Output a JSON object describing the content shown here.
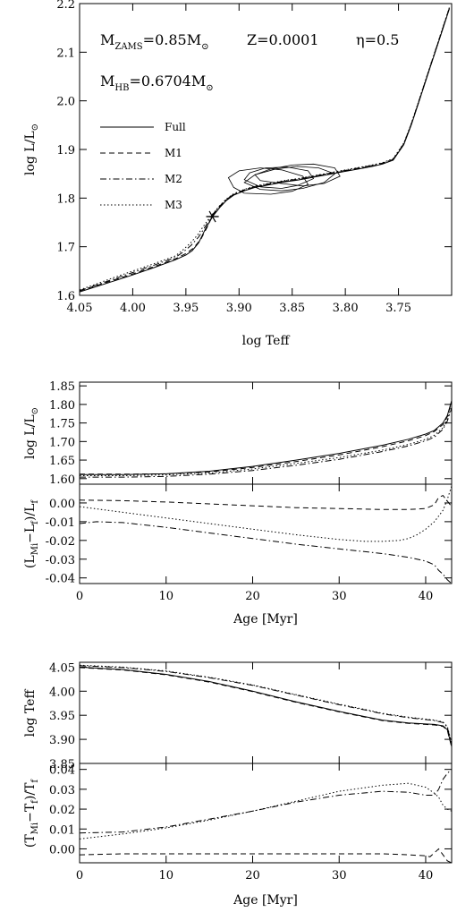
{
  "annotations": {
    "mzams_prefix": "M",
    "mzams_sub": "ZAMS",
    "mzams_value": "=0.85M",
    "metallicity": "Z=0.0001",
    "eta": "η=0.5",
    "mhb_prefix": "M",
    "mhb_sub": "HB",
    "mhb_value": "=0.6704M",
    "solar_symbol": "⊙"
  },
  "legend": [
    "Full",
    "M1",
    "M2",
    "M3"
  ],
  "colors": {
    "line": "#000000",
    "background": "#ffffff"
  },
  "chart_data": [
    {
      "type": "line",
      "xlabel": "log Teff",
      "ylabel_prefix": "log L/L",
      "xlim": [
        4.05,
        3.7
      ],
      "ylim": [
        1.6,
        2.2
      ],
      "xticks": [
        "4.05",
        "4.00",
        "3.95",
        "3.90",
        "3.85",
        "3.80",
        "3.75"
      ],
      "yticks": [
        "1.6",
        "1.7",
        "1.8",
        "1.9",
        "2.0",
        "2.1",
        "2.2"
      ],
      "marker": {
        "x": 3.925,
        "y": 1.762,
        "symbol": "asterisk"
      },
      "series": [
        {
          "name": "Full",
          "dash": "solid",
          "x": [
            4.05,
            4.04,
            4.02,
            4.0,
            3.98,
            3.96,
            3.95,
            3.944,
            3.938,
            3.932,
            3.925,
            3.918,
            3.912,
            3.905,
            3.895,
            3.885,
            3.875,
            3.865,
            3.855,
            3.845,
            3.835,
            3.825,
            3.815,
            3.805,
            3.795,
            3.785,
            3.775,
            3.765,
            3.755,
            3.745,
            3.738,
            3.732,
            3.726,
            3.72,
            3.714,
            3.708,
            3.702
          ],
          "y": [
            1.607,
            1.614,
            1.628,
            1.642,
            1.657,
            1.673,
            1.683,
            1.692,
            1.708,
            1.735,
            1.762,
            1.781,
            1.795,
            1.806,
            1.815,
            1.822,
            1.826,
            1.83,
            1.834,
            1.837,
            1.841,
            1.845,
            1.849,
            1.853,
            1.857,
            1.861,
            1.865,
            1.87,
            1.878,
            1.91,
            1.95,
            1.99,
            2.03,
            2.07,
            2.11,
            2.15,
            2.19
          ]
        },
        {
          "name": "M1",
          "dash": "dash",
          "x": [
            4.05,
            4.04,
            4.02,
            4.0,
            3.98,
            3.96,
            3.95,
            3.943,
            3.936,
            3.93,
            3.925,
            3.918,
            3.912,
            3.905,
            3.895,
            3.885,
            3.875,
            3.865,
            3.855,
            3.845,
            3.835,
            3.825,
            3.815,
            3.805,
            3.795,
            3.785,
            3.775,
            3.765,
            3.755,
            3.745,
            3.738,
            3.732,
            3.726,
            3.72,
            3.714,
            3.708,
            3.702
          ],
          "y": [
            1.609,
            1.616,
            1.63,
            1.644,
            1.659,
            1.675,
            1.686,
            1.697,
            1.715,
            1.74,
            1.764,
            1.782,
            1.796,
            1.807,
            1.816,
            1.823,
            1.827,
            1.831,
            1.835,
            1.838,
            1.842,
            1.846,
            1.85,
            1.854,
            1.858,
            1.862,
            1.866,
            1.871,
            1.879,
            1.911,
            1.951,
            1.991,
            2.031,
            2.071,
            2.111,
            2.151,
            2.191
          ]
        },
        {
          "name": "M2",
          "dash": "dashdot",
          "x": [
            4.05,
            4.04,
            4.02,
            4.0,
            3.98,
            3.96,
            3.952,
            3.945,
            3.938,
            3.931,
            3.925,
            3.918,
            3.912,
            3.905,
            3.895,
            3.885,
            3.875,
            3.865,
            3.855,
            3.845,
            3.835,
            3.825,
            3.815,
            3.805,
            3.795,
            3.785,
            3.775,
            3.765,
            3.755,
            3.745,
            3.738,
            3.732,
            3.726,
            3.72,
            3.714,
            3.708,
            3.702
          ],
          "y": [
            1.61,
            1.617,
            1.632,
            1.647,
            1.662,
            1.678,
            1.69,
            1.703,
            1.72,
            1.744,
            1.766,
            1.784,
            1.797,
            1.808,
            1.817,
            1.824,
            1.828,
            1.832,
            1.836,
            1.839,
            1.843,
            1.847,
            1.851,
            1.855,
            1.859,
            1.863,
            1.867,
            1.872,
            1.88,
            1.912,
            1.952,
            1.992,
            2.032,
            2.072,
            2.112,
            2.152,
            2.192
          ]
        },
        {
          "name": "M3",
          "dash": "dot",
          "x": [
            4.05,
            4.04,
            4.02,
            4.0,
            3.98,
            3.96,
            3.953,
            3.946,
            3.939,
            3.932,
            3.925,
            3.918,
            3.912,
            3.905,
            3.895,
            3.885,
            3.875,
            3.865,
            3.855,
            3.845,
            3.835,
            3.825,
            3.815,
            3.805,
            3.795,
            3.785,
            3.775,
            3.765,
            3.755,
            3.745,
            3.738,
            3.732,
            3.726,
            3.72,
            3.714,
            3.708,
            3.702
          ],
          "y": [
            1.611,
            1.619,
            1.635,
            1.65,
            1.665,
            1.681,
            1.693,
            1.707,
            1.724,
            1.747,
            1.767,
            1.785,
            1.798,
            1.809,
            1.818,
            1.825,
            1.829,
            1.833,
            1.837,
            1.84,
            1.844,
            1.848,
            1.852,
            1.856,
            1.86,
            1.864,
            1.868,
            1.873,
            1.881,
            1.913,
            1.953,
            1.993,
            2.033,
            2.073,
            2.113,
            2.153,
            2.193
          ]
        }
      ],
      "loops": [
        {
          "x": [
            3.86,
            3.84,
            3.82,
            3.805,
            3.81,
            3.83,
            3.85,
            3.87,
            3.885,
            3.88,
            3.86
          ],
          "y": [
            1.83,
            1.825,
            1.83,
            1.845,
            1.862,
            1.87,
            1.868,
            1.86,
            1.848,
            1.836,
            1.83
          ]
        },
        {
          "x": [
            3.88,
            3.86,
            3.84,
            3.82,
            3.81,
            3.825,
            3.845,
            3.865,
            3.885,
            3.895,
            3.88
          ],
          "y": [
            1.818,
            1.815,
            1.82,
            1.832,
            1.85,
            1.862,
            1.865,
            1.86,
            1.848,
            1.832,
            1.818
          ]
        },
        {
          "x": [
            3.895,
            3.87,
            3.85,
            3.835,
            3.84,
            3.86,
            3.88,
            3.9,
            3.91,
            3.905,
            3.895
          ],
          "y": [
            1.81,
            1.808,
            1.814,
            1.828,
            1.845,
            1.858,
            1.862,
            1.856,
            1.842,
            1.822,
            1.81
          ]
        },
        {
          "x": [
            3.88,
            3.86,
            3.845,
            3.83,
            3.835,
            3.855,
            3.875,
            3.89,
            3.895,
            3.88
          ],
          "y": [
            1.823,
            1.82,
            1.826,
            1.84,
            1.856,
            1.864,
            1.862,
            1.852,
            1.838,
            1.823
          ]
        }
      ]
    },
    {
      "type": "line",
      "xlim": [
        0,
        43
      ],
      "ylim": [
        1.585,
        1.86
      ],
      "ylabel_prefix": "log L/L",
      "yticks": [
        "1.60",
        "1.65",
        "1.70",
        "1.75",
        "1.80",
        "1.85"
      ],
      "series": [
        {
          "name": "Full",
          "dash": "solid",
          "x": [
            0,
            5,
            10,
            15,
            20,
            25,
            30,
            35,
            38,
            40,
            41,
            42,
            42.5,
            43
          ],
          "y": [
            1.611,
            1.611,
            1.613,
            1.62,
            1.633,
            1.65,
            1.668,
            1.69,
            1.706,
            1.72,
            1.73,
            1.75,
            1.77,
            1.81
          ]
        },
        {
          "name": "M1",
          "dash": "dash",
          "x": [
            0,
            5,
            10,
            15,
            20,
            25,
            30,
            35,
            38,
            40,
            41,
            42,
            42.5,
            43
          ],
          "y": [
            1.612,
            1.612,
            1.613,
            1.618,
            1.63,
            1.646,
            1.664,
            1.686,
            1.702,
            1.716,
            1.727,
            1.746,
            1.767,
            1.808
          ]
        },
        {
          "name": "M2",
          "dash": "dashdot",
          "x": [
            0,
            5,
            10,
            15,
            20,
            25,
            30,
            35,
            38,
            40,
            41,
            42,
            42.5,
            43
          ],
          "y": [
            1.604,
            1.604,
            1.606,
            1.612,
            1.622,
            1.636,
            1.652,
            1.673,
            1.688,
            1.702,
            1.712,
            1.733,
            1.755,
            1.79
          ]
        },
        {
          "name": "M3",
          "dash": "dot",
          "x": [
            0,
            5,
            10,
            15,
            20,
            25,
            30,
            35,
            38,
            40,
            41,
            42,
            42.5,
            43
          ],
          "y": [
            1.608,
            1.608,
            1.61,
            1.615,
            1.626,
            1.641,
            1.657,
            1.677,
            1.692,
            1.706,
            1.717,
            1.737,
            1.76,
            1.795
          ]
        }
      ]
    },
    {
      "type": "line",
      "xlim": [
        0,
        43
      ],
      "ylim": [
        -0.043,
        0.01
      ],
      "xlabel": "Age [Myr]",
      "ylabel": "(L",
      "ylabel_sub1": "Mi",
      "ylabel_mid": "−L",
      "ylabel_sub2": "f",
      "ylabel_end": ")/L",
      "ylabel_sub3": "f",
      "xticks": [
        "0",
        "10",
        "20",
        "30",
        "40"
      ],
      "yticks": [
        "0.00",
        "-0.01",
        "-0.02",
        "-0.03",
        "-0.04"
      ],
      "series": [
        {
          "name": "M1",
          "dash": "dash",
          "x": [
            0,
            5,
            10,
            15,
            20,
            25,
            30,
            35,
            38,
            40,
            40.5,
            41,
            41.5,
            42,
            42.5,
            43
          ],
          "y": [
            0.0015,
            0.0012,
            0.0005,
            -0.0005,
            -0.0015,
            -0.0025,
            -0.003,
            -0.0035,
            -0.0035,
            -0.003,
            -0.002,
            -0.001,
            0.003,
            0.004,
            0.001,
            -0.002
          ]
        },
        {
          "name": "M2",
          "dash": "dashdot",
          "x": [
            0,
            2,
            5,
            10,
            15,
            20,
            25,
            30,
            35,
            38,
            40,
            41,
            41.5,
            42,
            42.5,
            43
          ],
          "y": [
            -0.011,
            -0.01,
            -0.0105,
            -0.013,
            -0.016,
            -0.019,
            -0.022,
            -0.0245,
            -0.027,
            -0.029,
            -0.031,
            -0.033,
            -0.036,
            -0.038,
            -0.041,
            -0.043
          ]
        },
        {
          "name": "M3",
          "dash": "dot",
          "x": [
            0,
            5,
            10,
            15,
            20,
            25,
            30,
            33,
            35,
            37,
            38,
            39,
            40,
            41,
            42,
            42.5,
            43
          ],
          "y": [
            -0.002,
            -0.005,
            -0.008,
            -0.011,
            -0.014,
            -0.017,
            -0.0195,
            -0.0205,
            -0.0205,
            -0.02,
            -0.019,
            -0.017,
            -0.014,
            -0.01,
            -0.004,
            0.002,
            0.009
          ]
        }
      ]
    },
    {
      "type": "line",
      "xlim": [
        0,
        43
      ],
      "ylim": [
        3.85,
        4.06
      ],
      "ylabel": "log Teff",
      "yticks": [
        "3.85",
        "3.90",
        "3.95",
        "4.00",
        "4.05"
      ],
      "series": [
        {
          "name": "Full",
          "dash": "solid",
          "x": [
            0,
            5,
            10,
            15,
            20,
            25,
            30,
            33,
            35,
            38,
            40,
            41,
            42,
            42.5,
            43
          ],
          "y": [
            4.05,
            4.045,
            4.035,
            4.02,
            4.0,
            3.978,
            3.958,
            3.947,
            3.94,
            3.934,
            3.932,
            3.931,
            3.928,
            3.92,
            3.885
          ]
        },
        {
          "name": "M1",
          "dash": "dash",
          "x": [
            0,
            5,
            10,
            15,
            20,
            25,
            30,
            33,
            35,
            38,
            40,
            41,
            42,
            42.5,
            43
          ],
          "y": [
            4.049,
            4.044,
            4.034,
            4.019,
            3.999,
            3.977,
            3.957,
            3.946,
            3.939,
            3.933,
            3.931,
            3.93,
            3.927,
            3.919,
            3.884
          ]
        },
        {
          "name": "M2",
          "dash": "dashdot",
          "x": [
            0,
            5,
            10,
            15,
            20,
            25,
            30,
            33,
            35,
            38,
            40,
            41,
            42,
            42.5,
            43
          ],
          "y": [
            4.053,
            4.049,
            4.041,
            4.028,
            4.012,
            3.992,
            3.972,
            3.961,
            3.953,
            3.945,
            3.941,
            3.939,
            3.935,
            3.925,
            3.89
          ]
        },
        {
          "name": "M3",
          "dash": "dot",
          "x": [
            0,
            5,
            10,
            15,
            20,
            25,
            30,
            33,
            35,
            38,
            40,
            41,
            42,
            42.5,
            43
          ],
          "y": [
            4.054,
            4.05,
            4.042,
            4.029,
            4.013,
            3.993,
            3.973,
            3.962,
            3.954,
            3.946,
            3.942,
            3.94,
            3.936,
            3.927,
            3.892
          ]
        }
      ]
    },
    {
      "type": "line",
      "xlim": [
        0,
        43
      ],
      "ylim": [
        -0.007,
        0.043
      ],
      "xlabel": "Age [Myr]",
      "ylabel": "(T",
      "ylabel_sub1": "Mi",
      "ylabel_mid": "−T",
      "ylabel_sub2": "f",
      "ylabel_end": ")/T",
      "ylabel_sub3": "f",
      "xticks": [
        "0",
        "10",
        "20",
        "30",
        "40"
      ],
      "yticks": [
        "0.00",
        "0.01",
        "0.02",
        "0.03",
        "0.04"
      ],
      "series": [
        {
          "name": "M1",
          "dash": "dash",
          "x": [
            0,
            5,
            10,
            15,
            20,
            25,
            30,
            35,
            38,
            40,
            40.5,
            41,
            41.5,
            42,
            42.5,
            43
          ],
          "y": [
            -0.003,
            -0.0025,
            -0.0025,
            -0.0025,
            -0.0025,
            -0.0025,
            -0.0025,
            -0.0025,
            -0.003,
            -0.0035,
            -0.004,
            -0.002,
            0.0,
            -0.003,
            -0.006,
            -0.007
          ]
        },
        {
          "name": "M2",
          "dash": "dashdot",
          "x": [
            0,
            5,
            10,
            15,
            20,
            25,
            30,
            35,
            38,
            40,
            41,
            41.5,
            42,
            42.5,
            43
          ],
          "y": [
            0.008,
            0.0085,
            0.011,
            0.015,
            0.019,
            0.0235,
            0.027,
            0.029,
            0.0285,
            0.027,
            0.027,
            0.03,
            0.035,
            0.038,
            0.04
          ]
        },
        {
          "name": "M3",
          "dash": "dot",
          "x": [
            0,
            5,
            10,
            15,
            20,
            25,
            30,
            35,
            38,
            40,
            41,
            41.5,
            42,
            42.5,
            43
          ],
          "y": [
            0.005,
            0.0075,
            0.0105,
            0.0145,
            0.019,
            0.024,
            0.029,
            0.032,
            0.033,
            0.031,
            0.028,
            0.026,
            0.022,
            0.02,
            0.019
          ]
        }
      ]
    }
  ]
}
